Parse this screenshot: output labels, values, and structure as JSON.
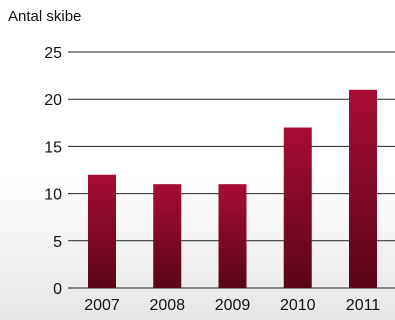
{
  "chart_data": {
    "type": "bar",
    "categories": [
      "2007",
      "2008",
      "2009",
      "2010",
      "2011"
    ],
    "values": [
      12,
      11,
      11,
      17,
      21
    ],
    "title": "",
    "xlabel": "",
    "ylabel": "Antal skibe",
    "ylim": [
      0,
      25
    ],
    "yticks": [
      0,
      5,
      10,
      15,
      20,
      25
    ],
    "grid": true,
    "legend": "none",
    "colors": {
      "bar_top": "#a80d35",
      "bar_bottom": "#5a0417",
      "grid": "#222222",
      "text": "#111111"
    }
  }
}
